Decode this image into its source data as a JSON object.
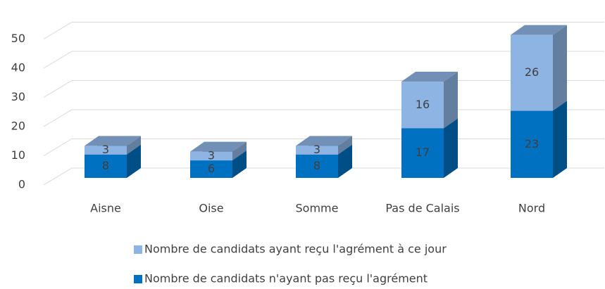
{
  "chart_data": {
    "type": "bar3d_stacked",
    "categories": [
      "Aisne",
      "Oise",
      "Somme",
      "Pas de Calais",
      "Nord"
    ],
    "series": [
      {
        "name": "Nombre de candidats n'ayant pas reçu l'agrément",
        "color": "#0070c0",
        "values": [
          8,
          6,
          8,
          17,
          23
        ]
      },
      {
        "name": "Nombre de candidats ayant reçu l'agrément à ce jour",
        "color": "#8eb4e3",
        "values": [
          3,
          3,
          3,
          16,
          26
        ]
      }
    ],
    "ylim": [
      0,
      50
    ],
    "yticks": [
      0,
      10,
      20,
      30,
      40,
      50
    ],
    "grid": true
  }
}
